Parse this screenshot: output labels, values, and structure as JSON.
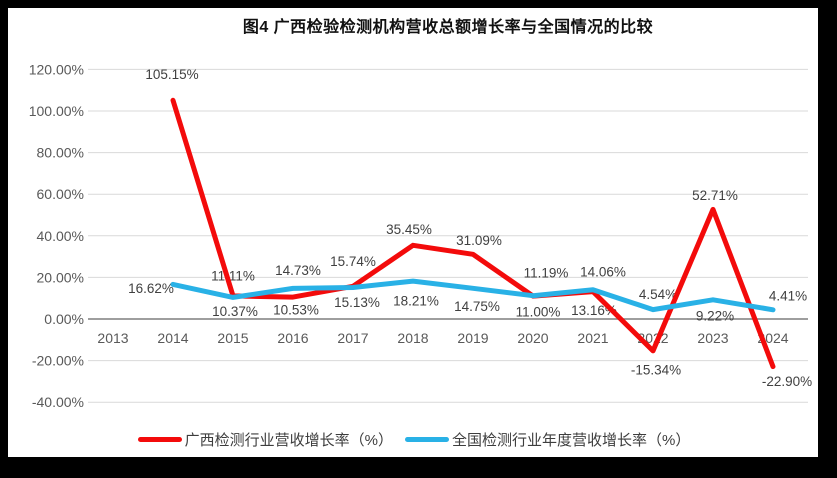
{
  "colors": {
    "guangxi_line": "#f30b0b",
    "national_line": "#29b1e6",
    "gridline": "#d9d9d9",
    "zero_axis_line": "#7f7f7f",
    "axis_text": "#595959",
    "data_label_text": "#404040",
    "frame": "#000000",
    "background": "#ffffff"
  },
  "chart_data": {
    "type": "line",
    "title": "图4 广西检验检测机构营收总额增长率与全国情况的比较",
    "categories": [
      "2013",
      "2014",
      "2015",
      "2016",
      "2017",
      "2018",
      "2019",
      "2020",
      "2021",
      "2022",
      "2023",
      "2024"
    ],
    "y_axis": {
      "min": -40,
      "max": 120,
      "step": 20,
      "format": "0.00%"
    },
    "y_ticks": [
      {
        "label": "120.00%",
        "value": 120
      },
      {
        "label": "100.00%",
        "value": 100
      },
      {
        "label": "80.00%",
        "value": 80
      },
      {
        "label": "60.00%",
        "value": 60
      },
      {
        "label": "40.00%",
        "value": 40
      },
      {
        "label": "20.00%",
        "value": 20
      },
      {
        "label": "0.00%",
        "value": 0
      },
      {
        "label": "-20.00%",
        "value": -20
      },
      {
        "label": "-40.00%",
        "value": -40
      }
    ],
    "grid": "horizontal",
    "legend_position": "bottom",
    "series": [
      {
        "name": "广西检测行业营收增长率（%）",
        "color": "#f30b0b",
        "values": [
          null,
          105.15,
          11.11,
          10.53,
          15.74,
          35.45,
          31.09,
          11.0,
          13.16,
          -15.34,
          52.71,
          -22.9
        ],
        "data_labels": [
          null,
          "105.15%",
          "11.11%",
          "10.53%",
          "15.74%",
          "35.45%",
          "31.09%",
          "11.00%",
          "13.16%",
          "-15.34%",
          "52.71%",
          "-22.90%"
        ],
        "label_offsets": [
          null,
          [
            -1,
            -26
          ],
          [
            0,
            -20
          ],
          [
            3,
            13
          ],
          [
            0,
            -25
          ],
          [
            -4,
            -16
          ],
          [
            6,
            -14
          ],
          [
            5,
            16
          ],
          [
            1,
            19
          ],
          [
            3,
            19
          ],
          [
            2,
            -14
          ],
          [
            14,
            15
          ]
        ]
      },
      {
        "name": "全国检测行业年度营收增长率（%）",
        "color": "#29b1e6",
        "values": [
          null,
          16.62,
          10.37,
          14.73,
          15.13,
          18.21,
          14.75,
          11.19,
          14.06,
          4.54,
          9.22,
          4.41
        ],
        "data_labels": [
          null,
          "16.62%",
          "10.37%",
          "14.73%",
          "15.13%",
          "18.21%",
          "14.75%",
          "11.19%",
          "14.06%",
          "4.54%",
          "9.22%",
          "4.41%"
        ],
        "label_offsets": [
          null,
          [
            -22,
            4
          ],
          [
            2,
            14
          ],
          [
            5,
            -18
          ],
          [
            4,
            15
          ],
          [
            3,
            20
          ],
          [
            4,
            18
          ],
          [
            13,
            -23
          ],
          [
            10,
            -18
          ],
          [
            5,
            -15
          ],
          [
            2,
            16
          ],
          [
            15,
            -14
          ]
        ]
      }
    ]
  }
}
